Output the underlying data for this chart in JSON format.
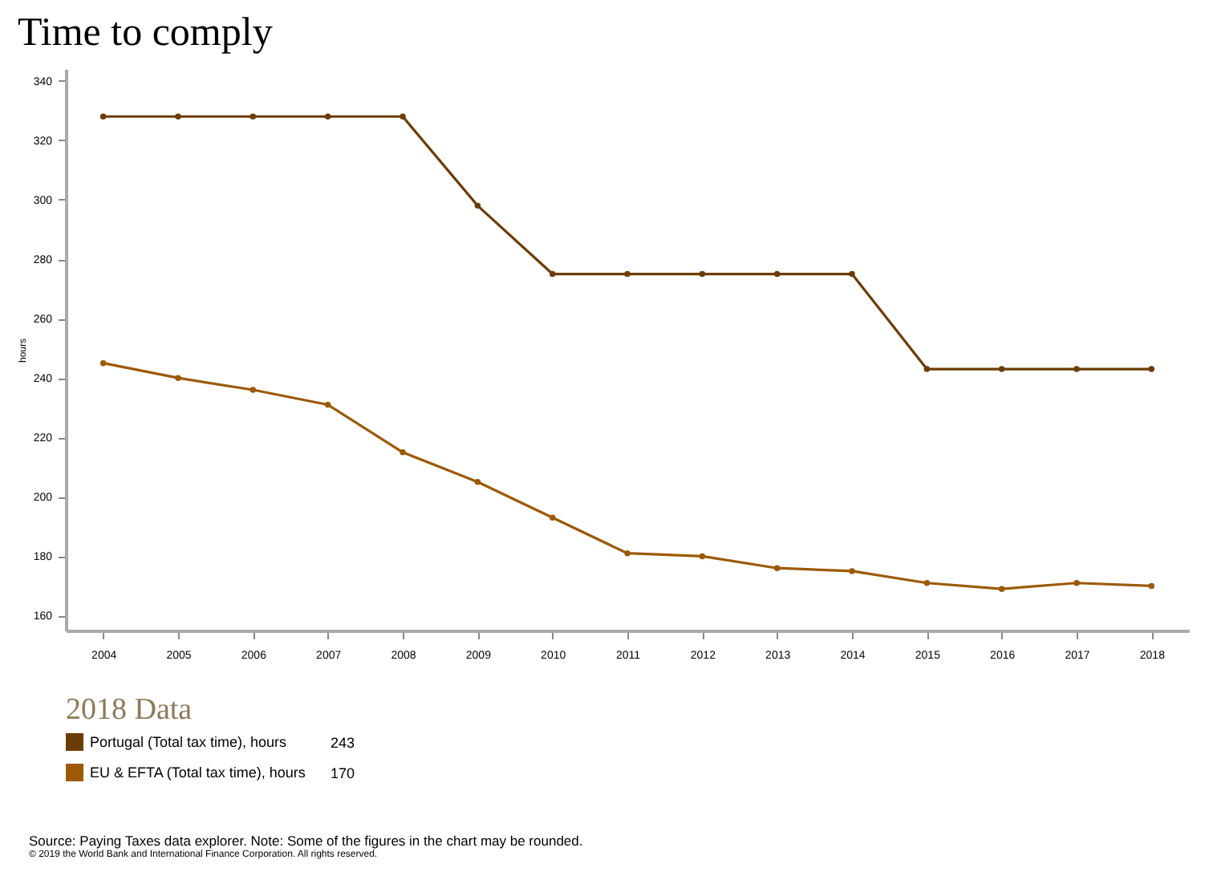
{
  "chart_data": {
    "type": "line",
    "title": "Time to comply",
    "ylabel": "hours",
    "legend_title": "2018 Data",
    "categories": [
      "2004",
      "2005",
      "2006",
      "2007",
      "2008",
      "2009",
      "2010",
      "2011",
      "2012",
      "2013",
      "2014",
      "2015",
      "2016",
      "2017",
      "2018"
    ],
    "series": [
      {
        "name": "Portugal (Total tax time), hours",
        "color": "#6b3d05",
        "values": [
          328,
          328,
          328,
          328,
          328,
          298,
          275,
          275,
          275,
          275,
          275,
          243,
          243,
          243,
          243
        ]
      },
      {
        "name": "EU & EFTA (Total tax time), hours",
        "color": "#9c5a05",
        "values": [
          245,
          240,
          236,
          231,
          215,
          205,
          193,
          181,
          180,
          176,
          175,
          171,
          169,
          171,
          170
        ]
      }
    ],
    "ylim": [
      155,
      344
    ],
    "yticks": [
      160,
      180,
      200,
      220,
      240,
      260,
      280,
      300,
      320,
      340
    ],
    "grid": false,
    "legend": "bottom left",
    "marker": "circle",
    "line_style": "solid",
    "annotations": [
      {
        "text": "243"
      },
      {
        "text": "170"
      },
      "Source: Paying Taxes data explorer. Note: Some of the figures in the chart may be rounded.",
      "© 2019 the World Bank and International Finance Corporation. All rights reserved."
    ]
  }
}
